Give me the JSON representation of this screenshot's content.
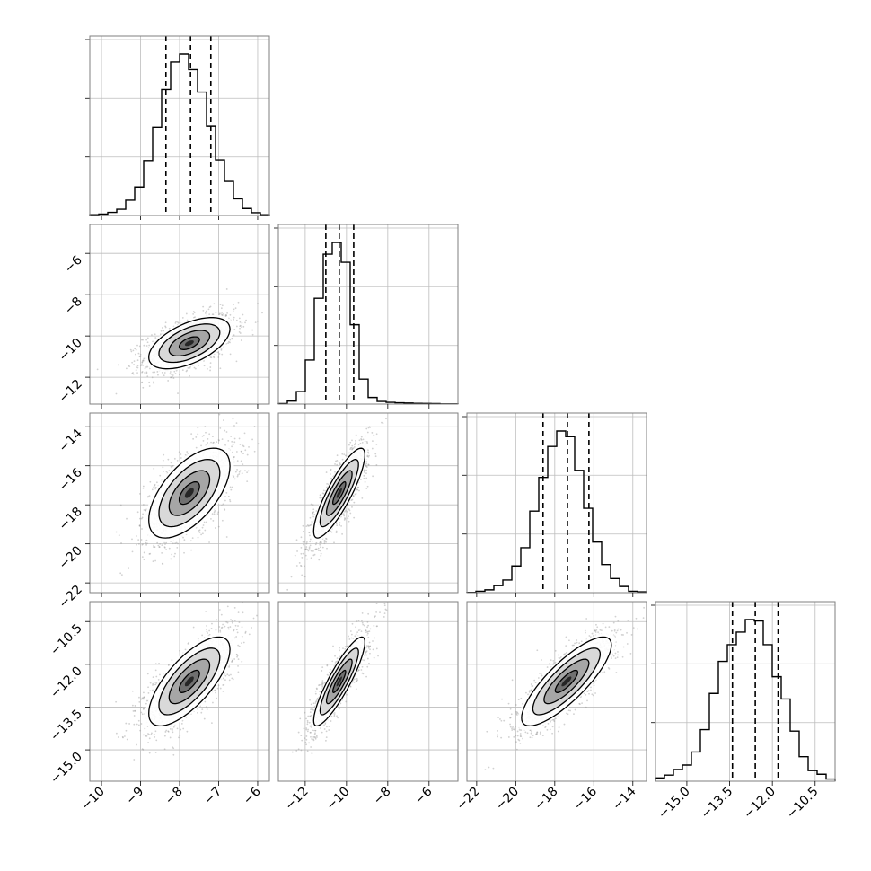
{
  "chart_data": {
    "type": "corner",
    "colors": {
      "hist": "#000000",
      "points": "#9a9a9a",
      "contour": "#000000",
      "grid": "#bdbdbd",
      "frame": "#7f7f7f"
    },
    "grid": true,
    "params": [
      {
        "range": [
          -10.3,
          -5.7
        ],
        "ticks": [
          -10,
          -9,
          -8,
          -7,
          -6
        ],
        "tick_labels": [
          "−10",
          "−9",
          "−8",
          "−7",
          "−6"
        ],
        "quantiles": [
          -8.35,
          -7.72,
          -7.2
        ],
        "mean": -7.75,
        "std": 0.52
      },
      {
        "range": [
          -13.3,
          -4.6
        ],
        "ticks": [
          -12,
          -10,
          -8,
          -6
        ],
        "tick_labels": [
          "−12",
          "−10",
          "−8",
          "−6"
        ],
        "quantiles": [
          -11.0,
          -10.35,
          -9.65
        ],
        "mean": -10.35,
        "std": 0.62
      },
      {
        "range": [
          -22.5,
          -13.3
        ],
        "ticks": [
          -22,
          -20,
          -18,
          -16,
          -14
        ],
        "tick_labels": [
          "−22",
          "−20",
          "−18",
          "−16",
          "−14"
        ],
        "quantiles": [
          -18.6,
          -17.35,
          -16.25
        ],
        "mean": -17.4,
        "std": 1.15
      },
      {
        "range": [
          -16.1,
          -9.8
        ],
        "ticks": [
          -15.0,
          -13.5,
          -12.0,
          -10.5
        ],
        "tick_labels": [
          "−15.0",
          "−13.5",
          "−12.0",
          "−10.5"
        ],
        "quantiles": [
          -13.4,
          -12.6,
          -11.8
        ],
        "mean": -12.6,
        "std": 0.78
      }
    ],
    "histograms": [
      {
        "param": 0,
        "bins": [
          -10.3,
          -10.07,
          -9.84,
          -9.61,
          -9.38,
          -9.15,
          -8.92,
          -8.69,
          -8.46,
          -8.23,
          -8.0,
          -7.77,
          -7.54,
          -7.31,
          -7.08,
          -6.85,
          -6.62,
          -6.39,
          -6.16,
          -5.93,
          -5.7
        ],
        "counts": [
          2,
          4,
          9,
          18,
          44,
          82,
          158,
          255,
          363,
          442,
          465,
          420,
          355,
          258,
          160,
          98,
          48,
          20,
          8,
          2
        ]
      },
      {
        "param": 1,
        "bins": [
          -13.3,
          -12.865,
          -12.43,
          -11.995,
          -11.56,
          -11.125,
          -10.69,
          -10.255,
          -9.82,
          -9.385,
          -8.95,
          -8.515,
          -8.08,
          -7.645,
          -7.21,
          -6.775,
          -6.34,
          -5.905,
          -5.47,
          -5.035,
          -4.6
        ],
        "counts": [
          3,
          20,
          85,
          300,
          720,
          1020,
          1100,
          965,
          540,
          170,
          45,
          18,
          12,
          9,
          7,
          5,
          4,
          3,
          1,
          1
        ]
      },
      {
        "param": 2,
        "bins": [
          -22.5,
          -22.04,
          -21.58,
          -21.12,
          -20.66,
          -20.2,
          -19.74,
          -19.28,
          -18.82,
          -18.36,
          -17.9,
          -17.44,
          -16.98,
          -16.52,
          -16.06,
          -15.6,
          -15.14,
          -14.68,
          -14.22,
          -13.76,
          -13.3
        ],
        "counts": [
          1,
          5,
          10,
          25,
          45,
          95,
          160,
          290,
          410,
          520,
          575,
          555,
          435,
          300,
          180,
          100,
          50,
          22,
          5,
          3
        ]
      },
      {
        "param": 3,
        "bins": [
          -16.1,
          -15.785,
          -15.47,
          -15.155,
          -14.84,
          -14.525,
          -14.21,
          -13.895,
          -13.58,
          -13.265,
          -12.95,
          -12.635,
          -12.32,
          -12.005,
          -11.69,
          -11.375,
          -11.06,
          -10.745,
          -10.43,
          -10.115,
          -9.8
        ],
        "counts": [
          12,
          22,
          42,
          58,
          105,
          185,
          315,
          430,
          490,
          535,
          580,
          575,
          490,
          375,
          295,
          180,
          88,
          38,
          25,
          8
        ]
      }
    ],
    "pairs": [
      {
        "x": 0,
        "y": 1,
        "rho": 0.55
      },
      {
        "x": 0,
        "y": 2,
        "rho": 0.6
      },
      {
        "x": 1,
        "y": 2,
        "rho": 0.85
      },
      {
        "x": 0,
        "y": 3,
        "rho": 0.72
      },
      {
        "x": 1,
        "y": 3,
        "rho": 0.88
      },
      {
        "x": 2,
        "y": 3,
        "rho": 0.82
      }
    ],
    "contour_levels_sigma": [
      0.5,
      1.0,
      1.5,
      2.0
    ]
  }
}
